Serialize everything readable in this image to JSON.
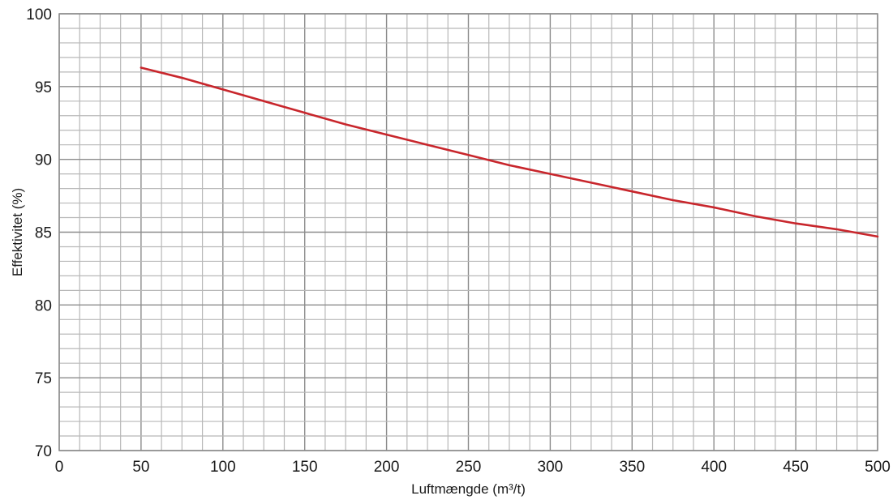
{
  "chart_data": {
    "type": "line",
    "title": "",
    "xlabel": "Luftmængde (m³/t)",
    "ylabel": "Effektivitet (%)",
    "xlim": [
      0,
      500
    ],
    "ylim": [
      70,
      100
    ],
    "x_ticks": [
      0,
      50,
      100,
      150,
      200,
      250,
      300,
      350,
      400,
      450,
      500
    ],
    "y_ticks": [
      70,
      75,
      80,
      85,
      90,
      95,
      100
    ],
    "x_minor_step": 12.5,
    "y_minor_step": 1,
    "grid": true,
    "series": [
      {
        "color": "#c8262c",
        "x": [
          50,
          75,
          100,
          125,
          150,
          175,
          200,
          225,
          250,
          275,
          300,
          325,
          350,
          375,
          400,
          425,
          450,
          475,
          500
        ],
        "y": [
          96.3,
          95.6,
          94.8,
          94.0,
          93.2,
          92.4,
          91.7,
          91.0,
          90.3,
          89.6,
          89.0,
          88.4,
          87.8,
          87.2,
          86.7,
          86.1,
          85.6,
          85.2,
          84.7
        ]
      }
    ]
  }
}
